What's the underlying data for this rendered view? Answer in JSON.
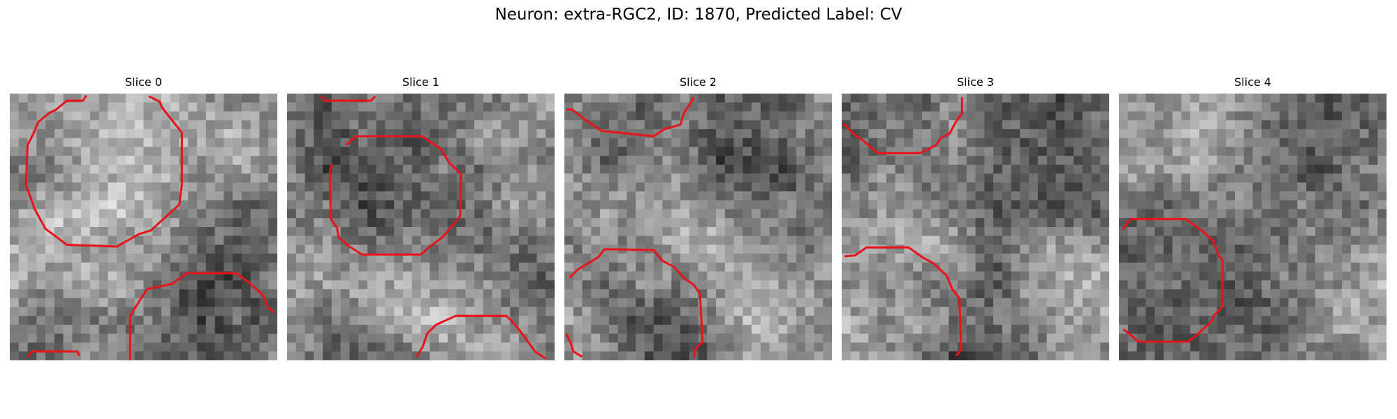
{
  "figure": {
    "title": "Neuron: extra-RGC2, ID: 1870, Predicted Label: CV"
  },
  "panels": [
    {
      "title": "Slice 0"
    },
    {
      "title": "Slice 1"
    },
    {
      "title": "Slice 2"
    },
    {
      "title": "Slice 3"
    },
    {
      "title": "Slice 4"
    }
  ],
  "colors": {
    "contour": "#e8141c",
    "background": "#ffffff"
  }
}
